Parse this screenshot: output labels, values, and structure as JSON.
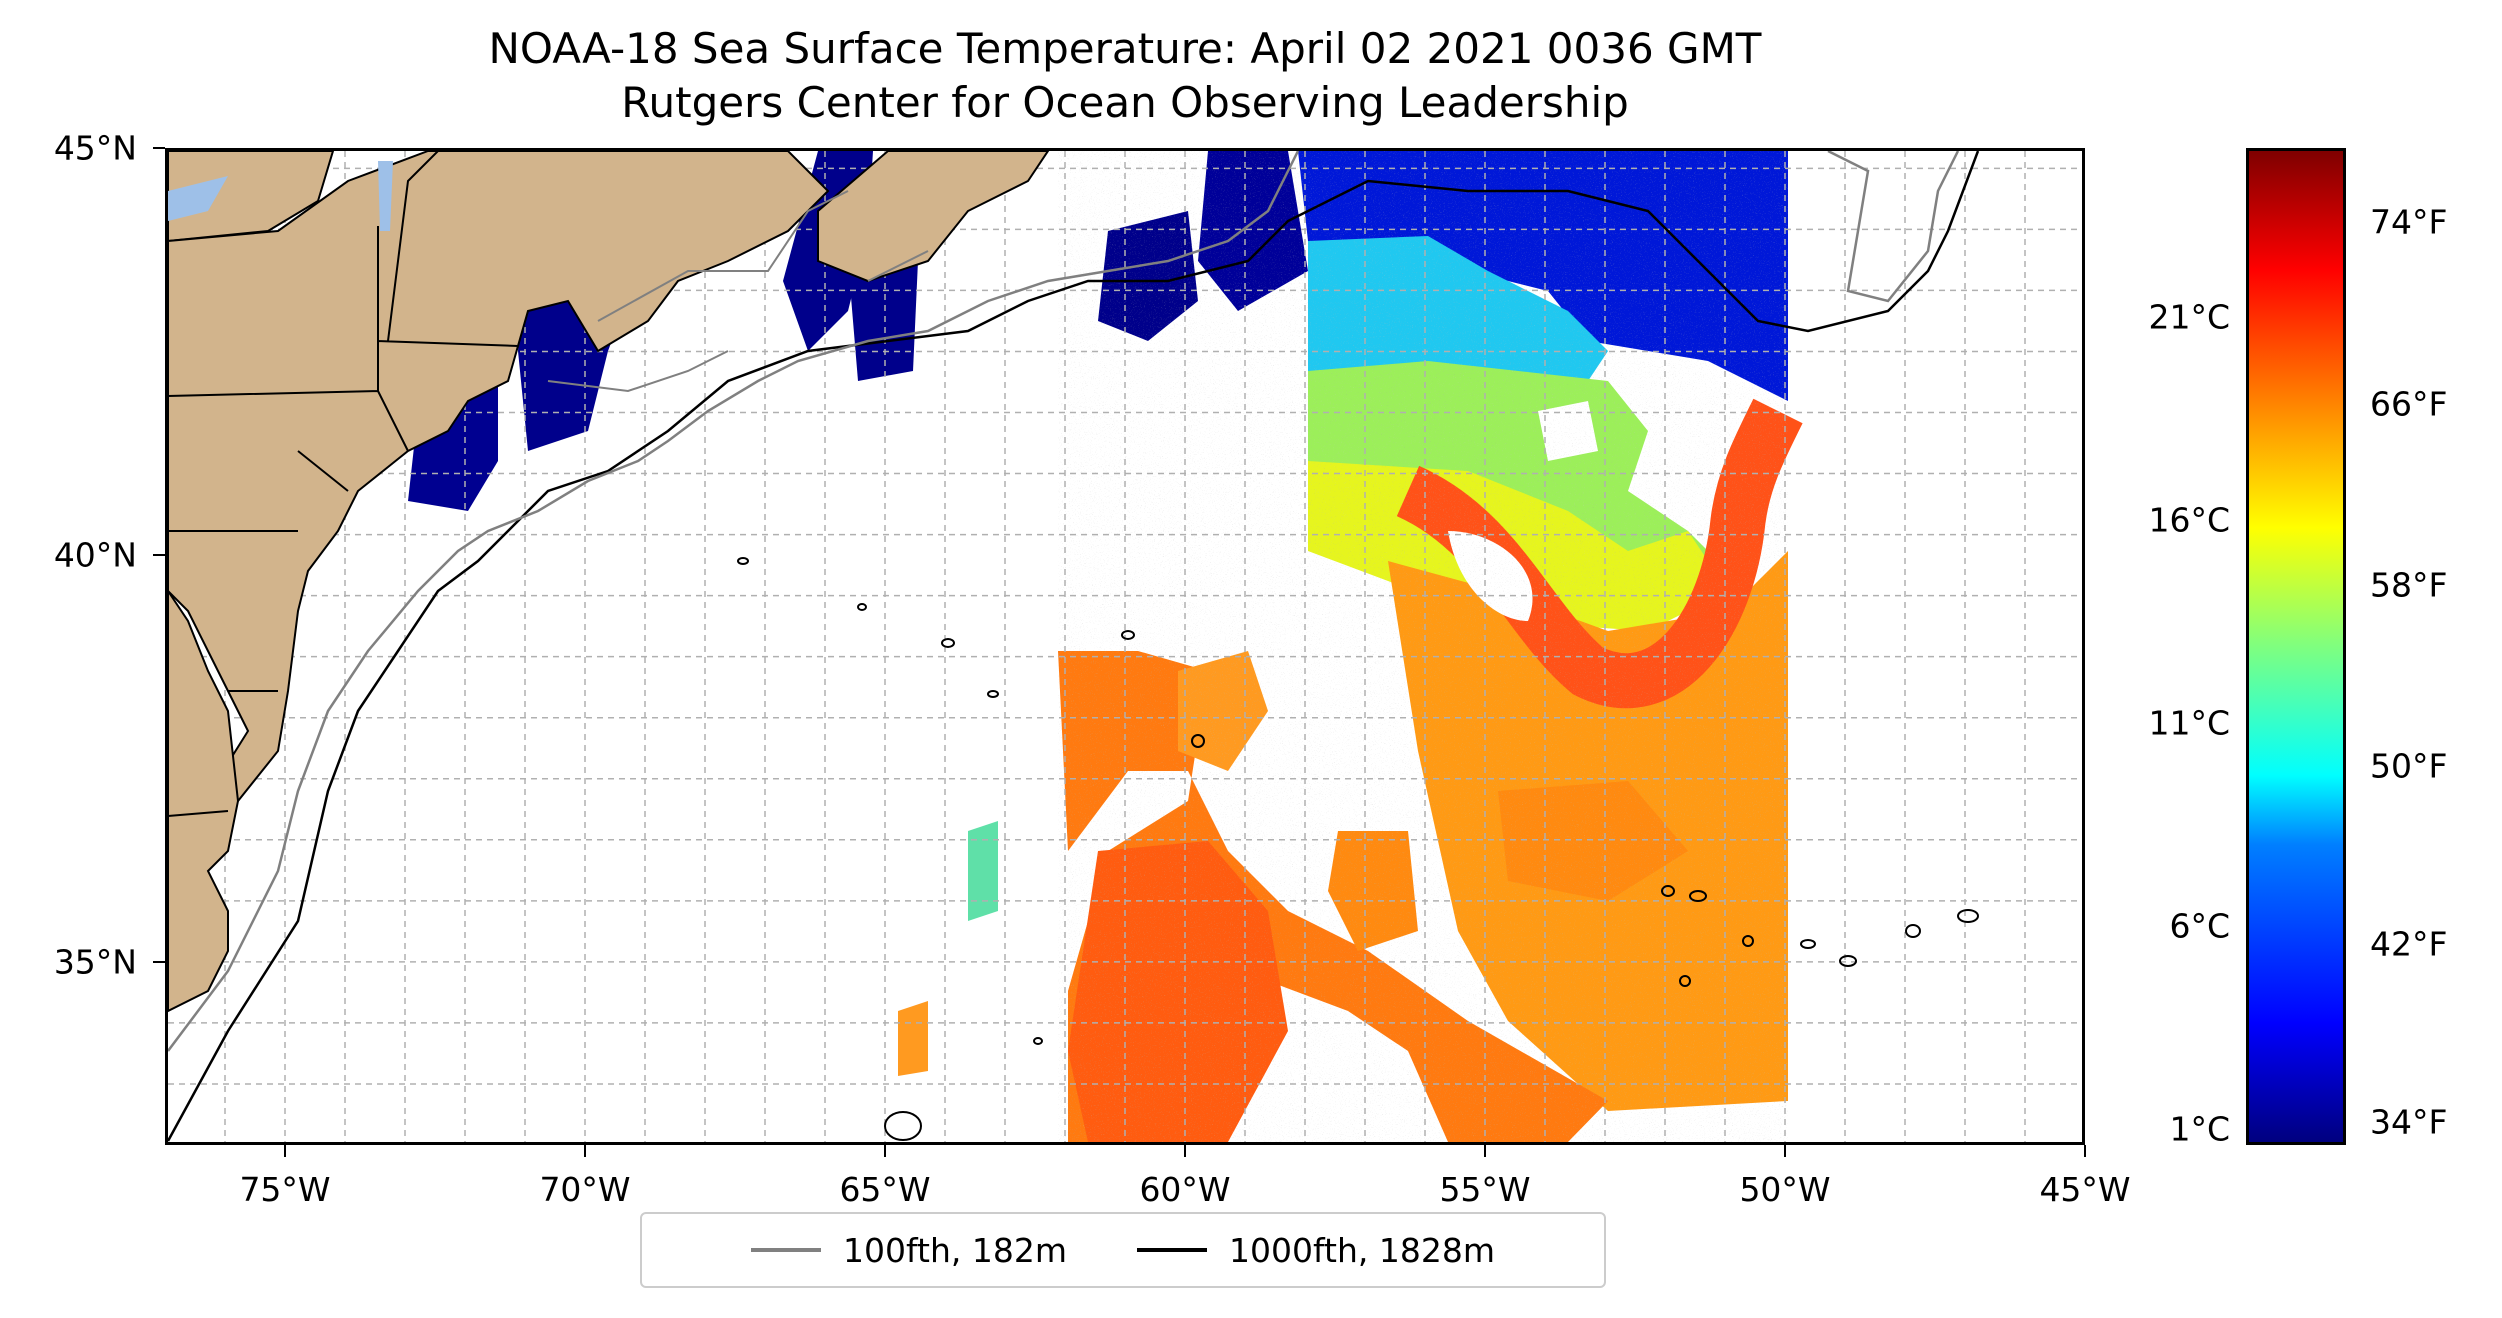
{
  "title": {
    "line1": "NOAA-18 Sea Surface Temperature: April 02 2021 0036 GMT",
    "line2": "Rutgers Center for Ocean Observing Leadership"
  },
  "map": {
    "lon_range": [
      -77,
      -45
    ],
    "lat_range": [
      32.75,
      45
    ],
    "lon_ticks": [
      "75°W",
      "70°W",
      "65°W",
      "60°W",
      "55°W",
      "50°W",
      "45°W"
    ],
    "lat_ticks": [
      "45°N",
      "40°N",
      "35°N"
    ],
    "gridlines": true,
    "land_color": "#d2b48c",
    "lake_color": "#9ec0e8"
  },
  "legend": {
    "items": [
      {
        "label": "100fth, 182m",
        "color": "#808080"
      },
      {
        "label": "1000fth, 1828m",
        "color": "#000000"
      }
    ],
    "placement": "bottom-center"
  },
  "colorbar": {
    "colormap": "jet",
    "celsius_labels": [
      "21°C",
      "16°C",
      "11°C",
      "6°C",
      "1°C"
    ],
    "fahrenheit_labels": [
      "74°F",
      "66°F",
      "58°F",
      "50°F",
      "42°F",
      "34°F"
    ]
  }
}
